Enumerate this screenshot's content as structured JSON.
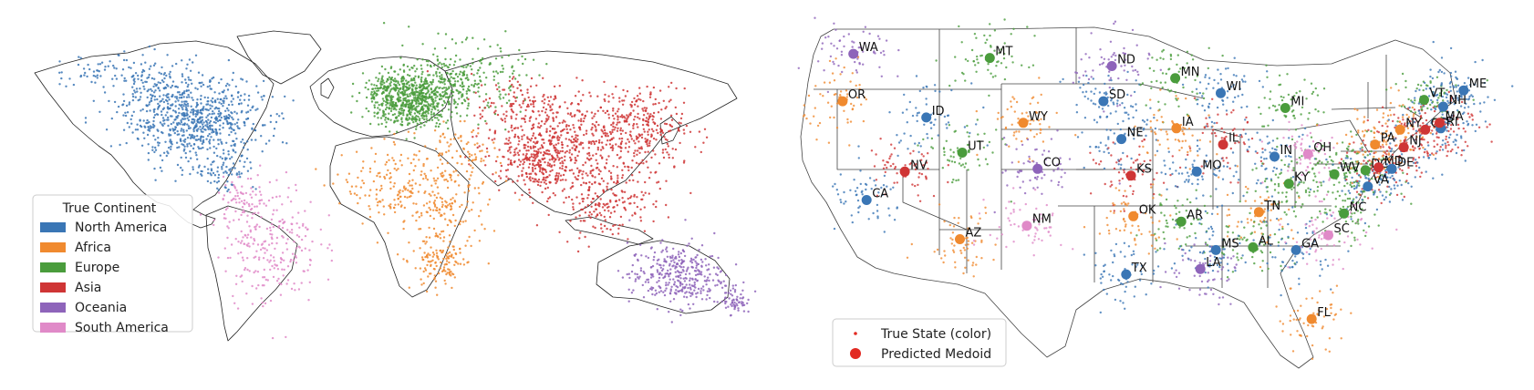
{
  "colors": {
    "north_america": "#3a76b5",
    "africa": "#f08a2f",
    "europe": "#4a9c3c",
    "asia": "#cf3535",
    "oceania": "#8e64ba",
    "south_america": "#e08ac8",
    "predicted_medoid_marker": "#e22a22",
    "boundary_lines": "#222222"
  },
  "chart_data": [
    {
      "type": "scatter",
      "panel": "world",
      "legend": {
        "title": "True Continent",
        "placement": "lower-left",
        "entries": [
          "North America",
          "Africa",
          "Europe",
          "Asia",
          "Oceania",
          "South America"
        ]
      },
      "x_unit": "longitude (deg)",
      "y_unit": "latitude (deg)",
      "xlim": [
        -180,
        180
      ],
      "ylim": [
        -60,
        84
      ],
      "series": [
        {
          "name": "North America",
          "color": "#3a76b5",
          "clusters": [
            [
              -98,
              40,
              17,
              9,
              700
            ],
            [
              -120,
              55,
              14,
              8,
              140
            ],
            [
              -85,
              18,
              9,
              5,
              80
            ],
            [
              -150,
              62,
              10,
              4,
              40
            ]
          ]
        },
        {
          "name": "Africa",
          "color": "#f08a2f",
          "clusters": [
            [
              5,
              10,
              14,
              9,
              180
            ],
            [
              30,
              0,
              10,
              12,
              150
            ],
            [
              25,
              -25,
              7,
              6,
              120
            ],
            [
              35,
              25,
              10,
              6,
              70
            ]
          ]
        },
        {
          "name": "Europe",
          "color": "#4a9c3c",
          "clusters": [
            [
              12,
              49,
              10,
              6,
              600
            ],
            [
              35,
              58,
              16,
              8,
              300
            ],
            [
              -3,
              52,
              5,
              5,
              100
            ]
          ]
        },
        {
          "name": "Asia",
          "color": "#cf3535",
          "clusters": [
            [
              100,
              28,
              22,
              12,
              500
            ],
            [
              75,
              22,
              9,
              8,
              250
            ],
            [
              125,
              38,
              12,
              8,
              200
            ],
            [
              70,
              45,
              15,
              8,
              150
            ],
            [
              108,
              2,
              12,
              7,
              150
            ]
          ]
        },
        {
          "name": "Oceania",
          "color": "#8e64ba",
          "clusters": [
            [
              145,
              -30,
              12,
              7,
              350
            ],
            [
              174,
              -41,
              3,
              3,
              60
            ]
          ]
        },
        {
          "name": "South America",
          "color": "#e08ac8",
          "clusters": [
            [
              -60,
              -15,
              12,
              14,
              250
            ],
            [
              -75,
              4,
              6,
              5,
              60
            ]
          ]
        }
      ]
    },
    {
      "type": "scatter",
      "panel": "usa",
      "legend": {
        "placement": "lower-left",
        "entries": [
          "True State (color)",
          "Predicted Medoid"
        ]
      },
      "x_unit": "longitude (deg)",
      "y_unit": "latitude (deg)",
      "xlim": [
        -125,
        -66
      ],
      "ylim": [
        24,
        50
      ],
      "medoids": [
        {
          "state": "WA",
          "lon": -120.6,
          "lat": 47.5,
          "color": "#8e64ba"
        },
        {
          "state": "OR",
          "lon": -121.5,
          "lat": 44.0,
          "color": "#f08a2f"
        },
        {
          "state": "CA",
          "lon": -119.5,
          "lat": 36.7,
          "color": "#3a76b5"
        },
        {
          "state": "NV",
          "lon": -116.3,
          "lat": 38.8,
          "color": "#cf3535"
        },
        {
          "state": "AZ",
          "lon": -111.7,
          "lat": 33.8,
          "color": "#f08a2f"
        },
        {
          "state": "ID",
          "lon": -114.5,
          "lat": 42.8,
          "color": "#3a76b5"
        },
        {
          "state": "MT",
          "lon": -109.2,
          "lat": 47.2,
          "color": "#4a9c3c"
        },
        {
          "state": "WY",
          "lon": -106.4,
          "lat": 42.4,
          "color": "#f08a2f"
        },
        {
          "state": "UT",
          "lon": -111.5,
          "lat": 40.2,
          "color": "#4a9c3c"
        },
        {
          "state": "CO",
          "lon": -105.2,
          "lat": 39.0,
          "color": "#8e64ba"
        },
        {
          "state": "NM",
          "lon": -106.1,
          "lat": 34.8,
          "color": "#e08ac8"
        },
        {
          "state": "ND",
          "lon": -99.0,
          "lat": 46.6,
          "color": "#8e64ba"
        },
        {
          "state": "SD",
          "lon": -99.7,
          "lat": 44.0,
          "color": "#3a76b5"
        },
        {
          "state": "NE",
          "lon": -98.2,
          "lat": 41.2,
          "color": "#3a76b5"
        },
        {
          "state": "KS",
          "lon": -97.4,
          "lat": 38.5,
          "color": "#cf3535"
        },
        {
          "state": "OK",
          "lon": -97.2,
          "lat": 35.5,
          "color": "#f08a2f"
        },
        {
          "state": "TX",
          "lon": -97.8,
          "lat": 31.2,
          "color": "#3a76b5"
        },
        {
          "state": "MN",
          "lon": -93.7,
          "lat": 45.7,
          "color": "#4a9c3c"
        },
        {
          "state": "IA",
          "lon": -93.6,
          "lat": 42.0,
          "color": "#f08a2f"
        },
        {
          "state": "MO",
          "lon": -91.9,
          "lat": 38.8,
          "color": "#3a76b5"
        },
        {
          "state": "AR",
          "lon": -93.2,
          "lat": 35.1,
          "color": "#4a9c3c"
        },
        {
          "state": "LA",
          "lon": -91.6,
          "lat": 31.6,
          "color": "#8e64ba"
        },
        {
          "state": "WI",
          "lon": -89.9,
          "lat": 44.6,
          "color": "#3a76b5"
        },
        {
          "state": "IL",
          "lon": -89.7,
          "lat": 40.8,
          "color": "#cf3535"
        },
        {
          "state": "MI",
          "lon": -84.5,
          "lat": 43.5,
          "color": "#4a9c3c"
        },
        {
          "state": "IN",
          "lon": -85.4,
          "lat": 39.9,
          "color": "#3a76b5"
        },
        {
          "state": "OH",
          "lon": -82.6,
          "lat": 40.1,
          "color": "#e08ac8"
        },
        {
          "state": "KY",
          "lon": -84.2,
          "lat": 37.9,
          "color": "#4a9c3c"
        },
        {
          "state": "TN",
          "lon": -86.7,
          "lat": 35.8,
          "color": "#f08a2f"
        },
        {
          "state": "MS",
          "lon": -90.3,
          "lat": 33.0,
          "color": "#3a76b5"
        },
        {
          "state": "AL",
          "lon": -87.2,
          "lat": 33.2,
          "color": "#4a9c3c"
        },
        {
          "state": "GA",
          "lon": -83.6,
          "lat": 33.0,
          "color": "#3a76b5"
        },
        {
          "state": "FL",
          "lon": -82.3,
          "lat": 27.9,
          "color": "#f08a2f"
        },
        {
          "state": "SC",
          "lon": -80.9,
          "lat": 34.1,
          "color": "#e08ac8"
        },
        {
          "state": "NC",
          "lon": -79.6,
          "lat": 35.7,
          "color": "#4a9c3c"
        },
        {
          "state": "VA",
          "lon": -77.6,
          "lat": 37.7,
          "color": "#3a76b5"
        },
        {
          "state": "WV",
          "lon": -80.4,
          "lat": 38.6,
          "color": "#4a9c3c"
        },
        {
          "state": "DC",
          "lon": -77.8,
          "lat": 38.9,
          "color": "#4a9c3c"
        },
        {
          "state": "MD",
          "lon": -76.7,
          "lat": 39.1,
          "color": "#cf3535"
        },
        {
          "state": "DE",
          "lon": -75.6,
          "lat": 39.0,
          "color": "#3a76b5"
        },
        {
          "state": "PA",
          "lon": -77.0,
          "lat": 40.8,
          "color": "#f08a2f"
        },
        {
          "state": "NJ",
          "lon": -74.6,
          "lat": 40.6,
          "color": "#cf3535"
        },
        {
          "state": "NY",
          "lon": -74.9,
          "lat": 41.9,
          "color": "#f08a2f"
        },
        {
          "state": "CT",
          "lon": -72.8,
          "lat": 41.9,
          "color": "#cf3535"
        },
        {
          "state": "RI",
          "lon": -71.5,
          "lat": 42.0,
          "color": "#3a76b5"
        },
        {
          "state": "MA",
          "lon": -71.6,
          "lat": 42.4,
          "color": "#cf3535"
        },
        {
          "state": "VT",
          "lon": -72.9,
          "lat": 44.1,
          "color": "#4a9c3c"
        },
        {
          "state": "NH",
          "lon": -71.3,
          "lat": 43.6,
          "color": "#3a76b5"
        },
        {
          "state": "ME",
          "lon": -69.6,
          "lat": 44.8,
          "color": "#3a76b5"
        }
      ]
    }
  ]
}
